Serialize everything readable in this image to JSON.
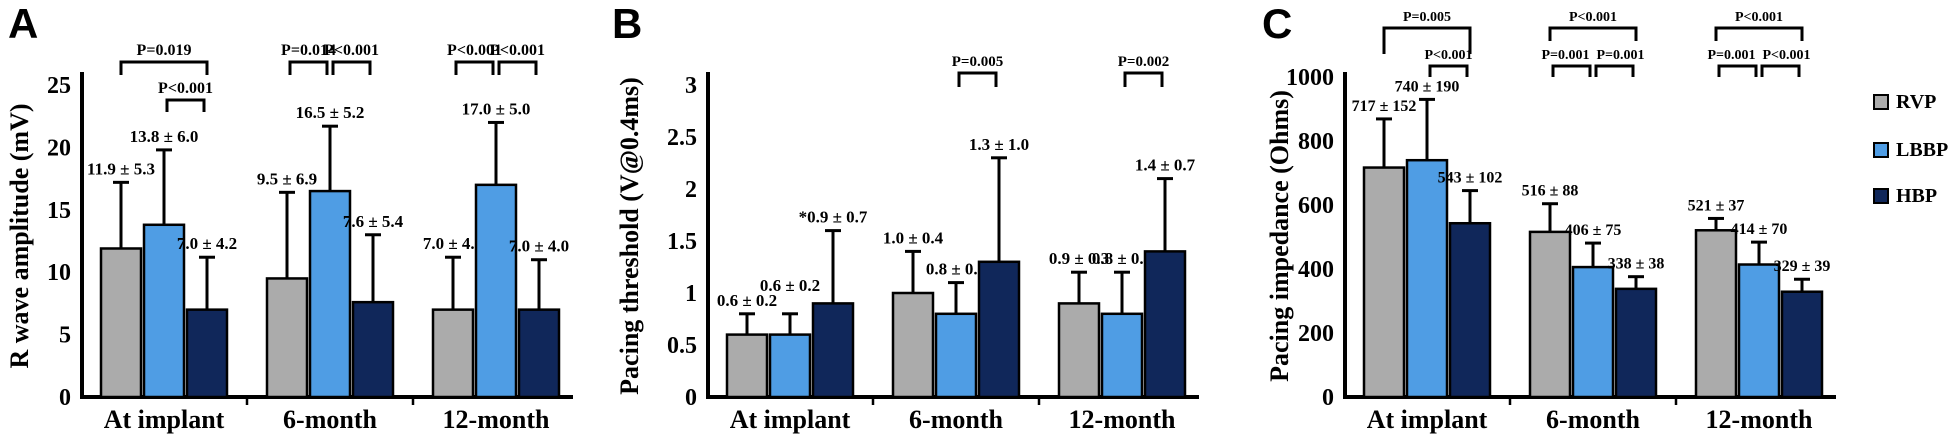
{
  "legend": {
    "items": [
      {
        "label": "RVP",
        "color": "#ababab"
      },
      {
        "label": "LBBP",
        "color": "#4f9de4"
      },
      {
        "label": "HBP",
        "color": "#10275a"
      }
    ]
  },
  "chart_data": {
    "type": "bar",
    "subtype": "grouped-bar-with-error-bars",
    "categories": [
      "At implant",
      "6-month",
      "12-month"
    ],
    "group_names": [
      "RVP",
      "LBBP",
      "HBP"
    ],
    "panels": [
      {
        "letter": "A",
        "ylabel": "R wave amplitude (mV)",
        "ylim": [
          0,
          25
        ],
        "yticks": [
          0,
          5,
          10,
          15,
          20,
          25
        ],
        "ytick_labels": [
          "0",
          "5",
          "10",
          "15",
          "20",
          "25"
        ],
        "series": [
          {
            "name": "RVP",
            "means": [
              11.9,
              9.5,
              7.0
            ],
            "sds": [
              5.3,
              6.9,
              4.2
            ],
            "labels": [
              "11.9 ± 5.3",
              "9.5 ± 6.9",
              "7.0 ± 4.2"
            ]
          },
          {
            "name": "LBBP",
            "means": [
              13.8,
              16.5,
              17.0
            ],
            "sds": [
              6.0,
              5.2,
              5.0
            ],
            "labels": [
              "13.8 ± 6.0",
              "16.5 ± 5.2",
              "17.0 ± 5.0"
            ]
          },
          {
            "name": "HBP",
            "means": [
              7.0,
              7.6,
              7.0
            ],
            "sds": [
              4.2,
              5.4,
              4.0
            ],
            "labels": [
              "7.0 ± 4.2",
              "7.6 ± 5.4",
              "7.0 ± 4.0"
            ]
          }
        ],
        "comparisons": [
          {
            "category": 0,
            "from": "RVP",
            "to": "HBP",
            "label": "P=0.019",
            "tier": "high"
          },
          {
            "category": 0,
            "from": "LBBP",
            "to": "HBP",
            "label": "P<0.001",
            "tier": "low"
          },
          {
            "category": 1,
            "from": "RVP",
            "to": "LBBP",
            "label": "P=0.014",
            "tier": "high"
          },
          {
            "category": 1,
            "from": "LBBP",
            "to": "HBP",
            "label": "P<0.001",
            "tier": "high"
          },
          {
            "category": 2,
            "from": "RVP",
            "to": "LBBP",
            "label": "P<0.001",
            "tier": "high"
          },
          {
            "category": 2,
            "from": "LBBP",
            "to": "HBP",
            "label": "P<0.001",
            "tier": "high"
          }
        ]
      },
      {
        "letter": "B",
        "ylabel": "Pacing threshold (V@0.4ms)",
        "ylim": [
          0,
          3
        ],
        "yticks": [
          0,
          0.5,
          1,
          1.5,
          2,
          2.5,
          3
        ],
        "ytick_labels": [
          "0",
          "0.5",
          "1",
          "1.5",
          "2",
          "2.5",
          "3"
        ],
        "series": [
          {
            "name": "RVP",
            "means": [
              0.6,
              1.0,
              0.9
            ],
            "sds": [
              0.2,
              0.4,
              0.3
            ],
            "labels": [
              "0.6 ± 0.2",
              "1.0 ± 0.4",
              "0.9 ± 0.3"
            ]
          },
          {
            "name": "LBBP",
            "means": [
              0.6,
              0.8,
              0.8
            ],
            "sds": [
              0.2,
              0.3,
              0.4
            ],
            "labels": [
              "0.6 ± 0.2",
              "0.8 ± 0.3",
              "0.8 ± 0.4"
            ]
          },
          {
            "name": "HBP",
            "means": [
              0.9,
              1.3,
              1.4
            ],
            "sds": [
              0.7,
              1.0,
              0.7
            ],
            "labels": [
              "*0.9 ± 0.7",
              "1.3 ± 1.0",
              "1.4 ± 0.7"
            ]
          }
        ],
        "comparisons": [
          {
            "category": 1,
            "from": "LBBP",
            "to": "HBP",
            "label": "P=0.005",
            "tier": "high"
          },
          {
            "category": 2,
            "from": "LBBP",
            "to": "HBP",
            "label": "P=0.002",
            "tier": "high"
          }
        ]
      },
      {
        "letter": "C",
        "ylabel": "Pacing impedance (Ohms)",
        "ylim": [
          0,
          1000
        ],
        "yticks": [
          0,
          200,
          400,
          600,
          800,
          1000
        ],
        "ytick_labels": [
          "0",
          "200",
          "400",
          "600",
          "800",
          "1000"
        ],
        "series": [
          {
            "name": "RVP",
            "means": [
              717,
              516,
              521
            ],
            "sds": [
              152,
              88,
              37
            ],
            "labels": [
              "717 ± 152",
              "516 ± 88",
              "521 ± 37"
            ]
          },
          {
            "name": "LBBP",
            "means": [
              740,
              406,
              414
            ],
            "sds": [
              190,
              75,
              70
            ],
            "labels": [
              "740 ± 190",
              "406 ± 75",
              "414 ± 70"
            ]
          },
          {
            "name": "HBP",
            "means": [
              543,
              338,
              329
            ],
            "sds": [
              102,
              38,
              39
            ],
            "labels": [
              "543 ± 102",
              "338 ± 38",
              "329 ± 39"
            ]
          }
        ],
        "comparisons": [
          {
            "category": 0,
            "from": "RVP",
            "to": "HBP",
            "label": "P=0.005",
            "tier": "high"
          },
          {
            "category": 0,
            "from": "LBBP",
            "to": "HBP",
            "label": "P<0.001",
            "tier": "low"
          },
          {
            "category": 1,
            "from": "RVP",
            "to": "HBP",
            "label": "P<0.001",
            "tier": "high"
          },
          {
            "category": 1,
            "from": "RVP",
            "to": "LBBP",
            "label": "P=0.001",
            "tier": "low"
          },
          {
            "category": 1,
            "from": "LBBP",
            "to": "HBP",
            "label": "P=0.001",
            "tier": "low"
          },
          {
            "category": 2,
            "from": "RVP",
            "to": "HBP",
            "label": "P<0.001",
            "tier": "high"
          },
          {
            "category": 2,
            "from": "RVP",
            "to": "LBBP",
            "label": "P=0.001",
            "tier": "low"
          },
          {
            "category": 2,
            "from": "LBBP",
            "to": "HBP",
            "label": "P<0.001",
            "tier": "low"
          }
        ]
      }
    ]
  }
}
